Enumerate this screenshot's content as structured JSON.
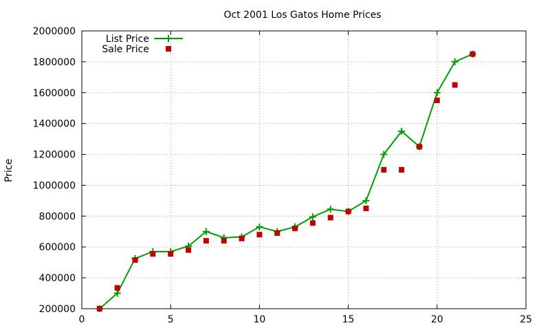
{
  "chart_data": {
    "type": "line",
    "title": "Oct 2001 Los Gatos Home Prices",
    "xlabel": "",
    "ylabel": "Price",
    "xlim": [
      0,
      25
    ],
    "ylim": [
      200000,
      2000000
    ],
    "xticks": [
      0,
      5,
      10,
      15,
      20,
      25
    ],
    "yticks": [
      200000,
      400000,
      600000,
      800000,
      1000000,
      1200000,
      1400000,
      1600000,
      1800000,
      2000000
    ],
    "grid": true,
    "legend_position": "top-left",
    "series": [
      {
        "name": "List Price",
        "style": "line-with-plus-markers",
        "color": "#00a000",
        "x": [
          1,
          2,
          3,
          4,
          5,
          6,
          7,
          8,
          9,
          10,
          11,
          12,
          13,
          14,
          15,
          16,
          17,
          18,
          19,
          20,
          21,
          22
        ],
        "values": [
          200000,
          300000,
          525000,
          570000,
          570000,
          605000,
          700000,
          660000,
          665000,
          730000,
          700000,
          730000,
          795000,
          845000,
          830000,
          900000,
          1200000,
          1350000,
          1250000,
          1600000,
          1800000,
          1850000
        ]
      },
      {
        "name": "Sale Price",
        "style": "square-markers",
        "color": "#c00000",
        "x": [
          1,
          2,
          3,
          4,
          5,
          6,
          7,
          8,
          9,
          10,
          11,
          12,
          13,
          14,
          15,
          16,
          17,
          18,
          19,
          20,
          21,
          22
        ],
        "values": [
          200000,
          335000,
          515000,
          555000,
          555000,
          580000,
          640000,
          640000,
          655000,
          680000,
          690000,
          720000,
          755000,
          790000,
          830000,
          850000,
          1100000,
          1100000,
          1250000,
          1550000,
          1650000,
          1850000
        ]
      }
    ]
  }
}
